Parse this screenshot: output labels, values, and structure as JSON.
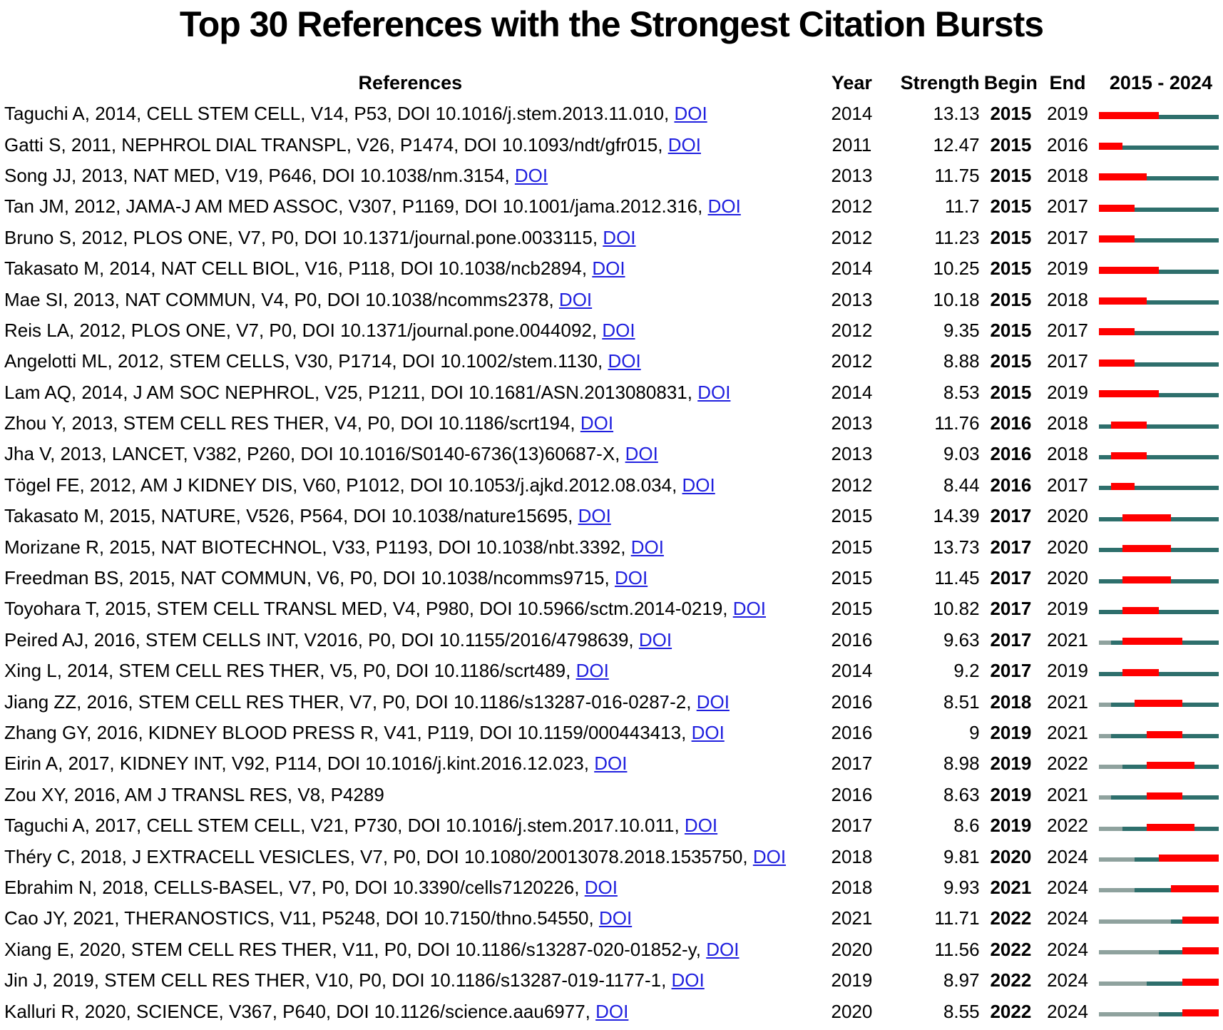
{
  "title": "Top 30 References with the Strongest Citation Bursts",
  "headers": {
    "references": "References",
    "year": "Year",
    "strength": "Strength",
    "begin": "Begin",
    "end": "End",
    "range": "2015 - 2024"
  },
  "doi_label": "DOI",
  "timeline": {
    "start": 2015,
    "end": 2024
  },
  "colors": {
    "burst": "#ff0000",
    "active": "#2e6f6c",
    "pre_publication": "#8fa29e",
    "link": "#2020df",
    "text": "#000000"
  },
  "chart_data": {
    "type": "table",
    "title": "Top 30 References with the Strongest Citation Bursts",
    "timeline_range": [
      2015,
      2024
    ],
    "legend": {
      "red_segment": "citation burst interval (Begin-End)",
      "teal_segment": "years after publication without burst",
      "gray_segment": "years before publication"
    },
    "rows": [
      {
        "reference": "Taguchi A, 2014, CELL STEM CELL, V14, P53, DOI 10.1016/j.stem.2013.11.010",
        "doi": true,
        "year": 2014,
        "strength": "13.13",
        "begin": 2015,
        "end": 2019
      },
      {
        "reference": "Gatti S, 2011, NEPHROL DIAL TRANSPL, V26, P1474, DOI 10.1093/ndt/gfr015",
        "doi": true,
        "year": 2011,
        "strength": "12.47",
        "begin": 2015,
        "end": 2016
      },
      {
        "reference": "Song JJ, 2013, NAT MED, V19, P646, DOI 10.1038/nm.3154",
        "doi": true,
        "year": 2013,
        "strength": "11.75",
        "begin": 2015,
        "end": 2018
      },
      {
        "reference": "Tan JM, 2012, JAMA-J AM MED ASSOC, V307, P1169, DOI 10.1001/jama.2012.316",
        "doi": true,
        "year": 2012,
        "strength": "11.7",
        "begin": 2015,
        "end": 2017
      },
      {
        "reference": "Bruno S, 2012, PLOS ONE, V7, P0, DOI 10.1371/journal.pone.0033115",
        "doi": true,
        "year": 2012,
        "strength": "11.23",
        "begin": 2015,
        "end": 2017
      },
      {
        "reference": "Takasato M, 2014, NAT CELL BIOL, V16, P118, DOI 10.1038/ncb2894",
        "doi": true,
        "year": 2014,
        "strength": "10.25",
        "begin": 2015,
        "end": 2019
      },
      {
        "reference": "Mae SI, 2013, NAT COMMUN, V4, P0, DOI 10.1038/ncomms2378",
        "doi": true,
        "year": 2013,
        "strength": "10.18",
        "begin": 2015,
        "end": 2018
      },
      {
        "reference": "Reis LA, 2012, PLOS ONE, V7, P0, DOI 10.1371/journal.pone.0044092",
        "doi": true,
        "year": 2012,
        "strength": "9.35",
        "begin": 2015,
        "end": 2017
      },
      {
        "reference": "Angelotti ML, 2012, STEM CELLS, V30, P1714, DOI 10.1002/stem.1130",
        "doi": true,
        "year": 2012,
        "strength": "8.88",
        "begin": 2015,
        "end": 2017
      },
      {
        "reference": "Lam AQ, 2014, J AM SOC NEPHROL, V25, P1211, DOI 10.1681/ASN.2013080831",
        "doi": true,
        "year": 2014,
        "strength": "8.53",
        "begin": 2015,
        "end": 2019
      },
      {
        "reference": "Zhou Y, 2013, STEM CELL RES THER, V4, P0, DOI 10.1186/scrt194",
        "doi": true,
        "year": 2013,
        "strength": "11.76",
        "begin": 2016,
        "end": 2018
      },
      {
        "reference": "Jha V, 2013, LANCET, V382, P260, DOI 10.1016/S0140-6736(13)60687-X",
        "doi": true,
        "year": 2013,
        "strength": "9.03",
        "begin": 2016,
        "end": 2018
      },
      {
        "reference": "Tögel FE, 2012, AM J KIDNEY DIS, V60, P1012, DOI 10.1053/j.ajkd.2012.08.034",
        "doi": true,
        "year": 2012,
        "strength": "8.44",
        "begin": 2016,
        "end": 2017
      },
      {
        "reference": "Takasato M, 2015, NATURE, V526, P564, DOI 10.1038/nature15695",
        "doi": true,
        "year": 2015,
        "strength": "14.39",
        "begin": 2017,
        "end": 2020
      },
      {
        "reference": "Morizane R, 2015, NAT BIOTECHNOL, V33, P1193, DOI 10.1038/nbt.3392",
        "doi": true,
        "year": 2015,
        "strength": "13.73",
        "begin": 2017,
        "end": 2020
      },
      {
        "reference": "Freedman BS, 2015, NAT COMMUN, V6, P0, DOI 10.1038/ncomms9715",
        "doi": true,
        "year": 2015,
        "strength": "11.45",
        "begin": 2017,
        "end": 2020
      },
      {
        "reference": "Toyohara T, 2015, STEM CELL TRANSL MED, V4, P980, DOI 10.5966/sctm.2014-0219",
        "doi": true,
        "year": 2015,
        "strength": "10.82",
        "begin": 2017,
        "end": 2019
      },
      {
        "reference": "Peired AJ, 2016, STEM CELLS INT, V2016, P0, DOI 10.1155/2016/4798639",
        "doi": true,
        "year": 2016,
        "strength": "9.63",
        "begin": 2017,
        "end": 2021
      },
      {
        "reference": "Xing L, 2014, STEM CELL RES THER, V5, P0, DOI 10.1186/scrt489",
        "doi": true,
        "year": 2014,
        "strength": "9.2",
        "begin": 2017,
        "end": 2019
      },
      {
        "reference": "Jiang ZZ, 2016, STEM CELL RES THER, V7, P0, DOI 10.1186/s13287-016-0287-2",
        "doi": true,
        "year": 2016,
        "strength": "8.51",
        "begin": 2018,
        "end": 2021
      },
      {
        "reference": "Zhang GY, 2016, KIDNEY BLOOD PRESS R, V41, P119, DOI 10.1159/000443413",
        "doi": true,
        "year": 2016,
        "strength": "9",
        "begin": 2019,
        "end": 2021
      },
      {
        "reference": "Eirin A, 2017, KIDNEY INT, V92, P114, DOI 10.1016/j.kint.2016.12.023",
        "doi": true,
        "year": 2017,
        "strength": "8.98",
        "begin": 2019,
        "end": 2022
      },
      {
        "reference": "Zou XY, 2016, AM J TRANSL RES, V8, P4289",
        "doi": false,
        "year": 2016,
        "strength": "8.63",
        "begin": 2019,
        "end": 2021
      },
      {
        "reference": "Taguchi A, 2017, CELL STEM CELL, V21, P730, DOI 10.1016/j.stem.2017.10.011",
        "doi": true,
        "year": 2017,
        "strength": "8.6",
        "begin": 2019,
        "end": 2022
      },
      {
        "reference": "Théry C, 2018, J EXTRACELL VESICLES, V7, P0, DOI 10.1080/20013078.2018.1535750",
        "doi": true,
        "year": 2018,
        "strength": "9.81",
        "begin": 2020,
        "end": 2024
      },
      {
        "reference": "Ebrahim N, 2018, CELLS-BASEL, V7, P0, DOI 10.3390/cells7120226",
        "doi": true,
        "year": 2018,
        "strength": "9.93",
        "begin": 2021,
        "end": 2024
      },
      {
        "reference": "Cao JY, 2021, THERANOSTICS, V11, P5248, DOI 10.7150/thno.54550",
        "doi": true,
        "year": 2021,
        "strength": "11.71",
        "begin": 2022,
        "end": 2024
      },
      {
        "reference": "Xiang E, 2020, STEM CELL RES THER, V11, P0, DOI 10.1186/s13287-020-01852-y",
        "doi": true,
        "year": 2020,
        "strength": "11.56",
        "begin": 2022,
        "end": 2024
      },
      {
        "reference": "Jin J, 2019, STEM CELL RES THER, V10, P0, DOI 10.1186/s13287-019-1177-1",
        "doi": true,
        "year": 2019,
        "strength": "8.97",
        "begin": 2022,
        "end": 2024
      },
      {
        "reference": "Kalluri R, 2020, SCIENCE, V367, P640, DOI 10.1126/science.aau6977",
        "doi": true,
        "year": 2020,
        "strength": "8.55",
        "begin": 2022,
        "end": 2024
      }
    ]
  }
}
